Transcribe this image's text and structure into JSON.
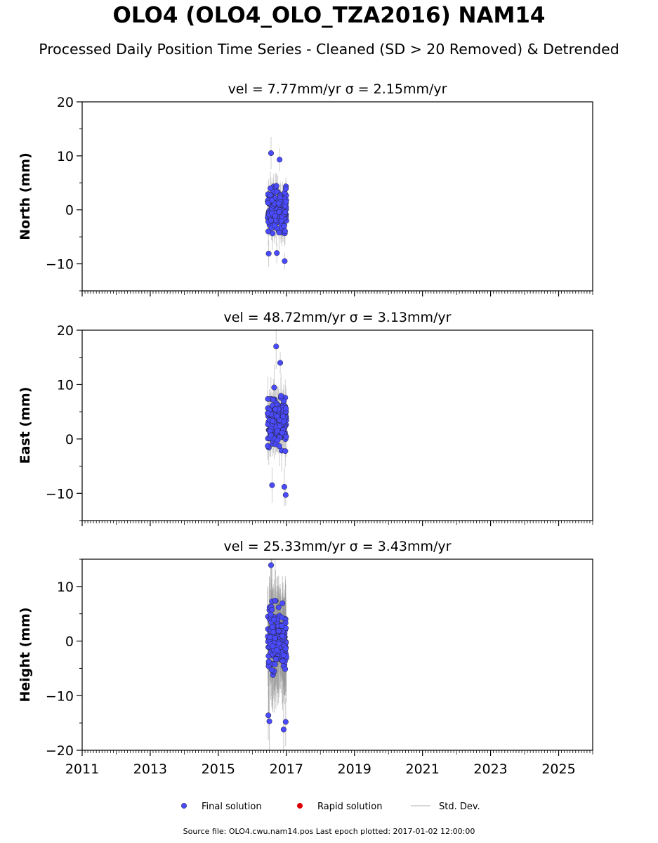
{
  "title": "OLO4 (OLO4_OLO_TZA2016) NAM14",
  "subtitle": "Processed Daily Position Time Series - Cleaned (SD > 20 Removed) & Detrended",
  "footer": "Source file: OLO4.cwu.nam14.pos  Last epoch plotted: 2017-01-02 12:00:00",
  "legend": [
    {
      "label": "Final solution",
      "kind": "marker",
      "color": "#4a4aff"
    },
    {
      "label": "Rapid solution",
      "kind": "marker",
      "color": "#dd0000"
    },
    {
      "label": "Std. Dev.",
      "kind": "line",
      "color": "#cccccc"
    }
  ],
  "chart_data": [
    {
      "type": "scatter",
      "title": "vel = 7.77mm/yr   σ = 2.15mm/yr",
      "ylabel": "North (mm)",
      "xlim": [
        2011,
        2026
      ],
      "ylim": [
        -15,
        20
      ],
      "yticks": [
        -10,
        0,
        10,
        20
      ],
      "ytick_labels": [
        "−10",
        "0",
        "10",
        "20"
      ],
      "x_range": [
        2016.45,
        2017.0
      ],
      "center": 0.0,
      "spread": 3.2,
      "errbar": 2.4,
      "highlights": [
        [
          2016.55,
          10.5
        ],
        [
          2016.8,
          9.3
        ],
        [
          2016.95,
          -9.5
        ],
        [
          2016.48,
          -8.1
        ],
        [
          2016.72,
          -8.0
        ]
      ],
      "marker_color": "#4a4aff"
    },
    {
      "type": "scatter",
      "title": "vel = 48.72mm/yr   σ = 3.13mm/yr",
      "ylabel": "East (mm)",
      "xlim": [
        2011,
        2026
      ],
      "ylim": [
        -15,
        20
      ],
      "yticks": [
        -10,
        0,
        10,
        20
      ],
      "ytick_labels": [
        "−10",
        "0",
        "10",
        "20"
      ],
      "x_range": [
        2016.45,
        2017.0
      ],
      "center": 3.5,
      "spread": 3.8,
      "errbar": 3.0,
      "highlights": [
        [
          2016.7,
          17.0
        ],
        [
          2016.82,
          14.0
        ],
        [
          2016.98,
          -10.3
        ],
        [
          2016.58,
          -8.5
        ],
        [
          2016.94,
          -8.8
        ]
      ],
      "marker_color": "#4a4aff"
    },
    {
      "type": "scatter",
      "title": "vel = 25.33mm/yr   σ = 3.43mm/yr",
      "ylabel": "Height (mm)",
      "xlim": [
        2011,
        2026
      ],
      "ylim": [
        -20,
        15
      ],
      "yticks": [
        -20,
        -10,
        0,
        10
      ],
      "ytick_labels": [
        "−20",
        "−10",
        "0",
        "10"
      ],
      "xticks": [
        2011,
        2013,
        2015,
        2017,
        2019,
        2021,
        2023,
        2025
      ],
      "xtick_labels": [
        "2011",
        "2013",
        "2015",
        "2017",
        "2019",
        "2021",
        "2023",
        "2025"
      ],
      "x_range": [
        2016.45,
        2017.0
      ],
      "center": 0.0,
      "spread": 5.0,
      "errbar": 6.5,
      "highlights": [
        [
          2016.55,
          13.9
        ],
        [
          2016.5,
          -14.7
        ],
        [
          2016.92,
          -16.2
        ],
        [
          2016.98,
          -14.8
        ],
        [
          2016.47,
          -13.6
        ]
      ],
      "marker_color": "#4a4aff"
    }
  ]
}
